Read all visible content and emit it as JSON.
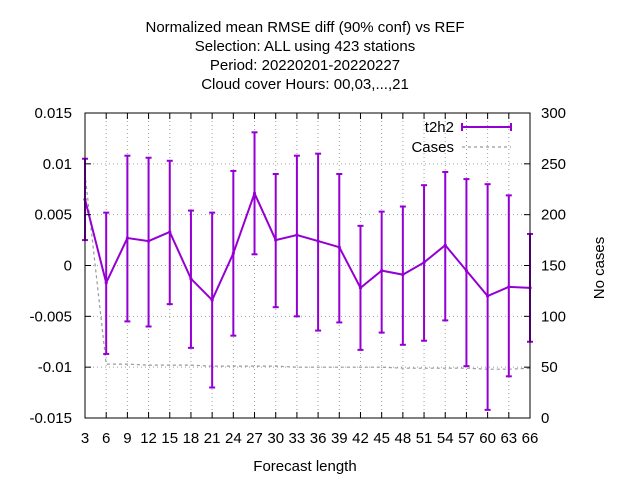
{
  "chart_data": {
    "type": "line",
    "title_lines": [
      "Normalized mean RMSE diff (90% conf) vs REF",
      "Selection: ALL using   423 stations",
      "Period: 20220201-20220227",
      "Cloud cover   Hours:  00,03,...,21"
    ],
    "xlabel": "Forecast length",
    "ylabel_right": "No cases",
    "x": [
      3,
      6,
      9,
      12,
      15,
      18,
      21,
      24,
      27,
      30,
      33,
      36,
      39,
      42,
      45,
      48,
      51,
      54,
      57,
      60,
      63,
      66
    ],
    "xlim": [
      3,
      66
    ],
    "ylim": [
      -0.015,
      0.015
    ],
    "y2lim": [
      0,
      300
    ],
    "yticks": [
      "-0.015",
      "-0.01",
      "-0.005",
      "0",
      "0.005",
      "0.01",
      "0.015"
    ],
    "y2ticks": [
      "0",
      "50",
      "100",
      "150",
      "200",
      "250",
      "300"
    ],
    "grid": true,
    "legend_position": "top-right",
    "colors": {
      "series": "#9400d3",
      "cases": "#999999"
    },
    "series": [
      {
        "name": "t2h2",
        "values": [
          0.0065,
          -0.0017,
          0.0027,
          0.0024,
          0.0033,
          -0.0013,
          -0.0034,
          0.0012,
          0.0071,
          0.0025,
          0.003,
          0.0024,
          0.0018,
          -0.0022,
          -0.0005,
          -0.0009,
          0.0003,
          0.002,
          -0.0005,
          -0.003,
          -0.0021,
          -0.0022
        ],
        "err_low": [
          0.0025,
          -0.0087,
          -0.0055,
          -0.006,
          -0.0038,
          -0.0081,
          -0.012,
          -0.0069,
          0.0011,
          -0.0041,
          -0.005,
          -0.0064,
          -0.0056,
          -0.0083,
          -0.0066,
          -0.0078,
          -0.0074,
          -0.0054,
          -0.0099,
          -0.0142,
          -0.0109,
          -0.0075
        ],
        "err_high": [
          0.0105,
          0.0052,
          0.0108,
          0.0106,
          0.0103,
          0.0054,
          0.0052,
          0.0093,
          0.0131,
          0.009,
          0.0108,
          0.011,
          0.009,
          0.0039,
          0.0053,
          0.0058,
          0.0079,
          0.0092,
          0.0085,
          0.008,
          0.0069,
          0.0031
        ]
      },
      {
        "name": "Cases",
        "values": [
          240,
          53,
          53,
          52,
          52,
          52,
          51,
          51,
          51,
          51,
          50,
          50,
          50,
          50,
          50,
          49,
          49,
          49,
          49,
          48,
          48,
          49
        ]
      }
    ]
  }
}
